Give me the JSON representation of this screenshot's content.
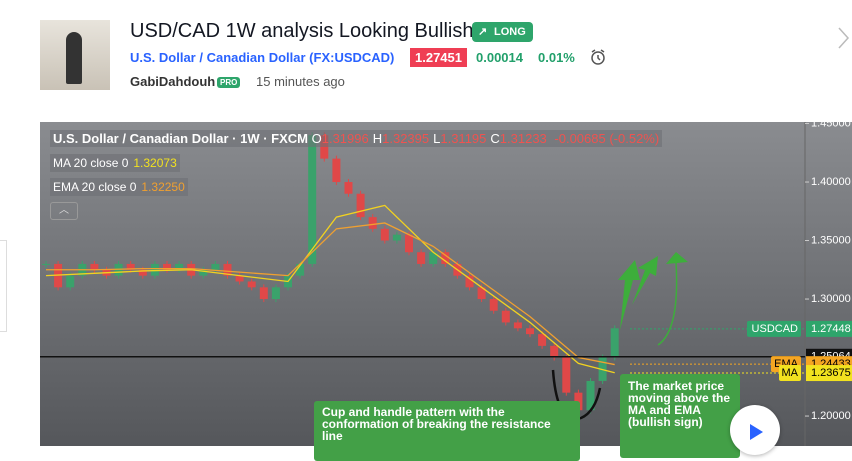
{
  "header": {
    "title": "USD/CAD 1W analysis Looking Bullish",
    "badge": "LONG",
    "symbol_name": "U.S. Dollar / Canadian Dollar",
    "symbol_code": "(FX:USDCAD)",
    "price": "1.27451",
    "change": "0.00014",
    "change_pct": "0.01%",
    "author": "GabiDahdouh",
    "author_badge": "PRO",
    "time": "15 minutes ago"
  },
  "chart_data": {
    "type": "candlestick",
    "title": "U.S. Dollar / Canadian Dollar · 1W · FXCM",
    "ohlc": [
      {
        "key": "O",
        "val": "1.31996"
      },
      {
        "key": "H",
        "val": "1.32395"
      },
      {
        "key": "L",
        "val": "1.31195"
      },
      {
        "key": "C",
        "val": "1.31233"
      }
    ],
    "ohlc_change": "-0.00685 (-0.52%)",
    "indicators": [
      {
        "name": "MA 20 close 0",
        "value": "1.32073",
        "color": "#f2e21f"
      },
      {
        "name": "EMA 20 close 0",
        "value": "1.32250",
        "color": "#f0a030"
      }
    ],
    "close": [
      1.33,
      1.31,
      1.32,
      1.33,
      1.325,
      1.32,
      1.33,
      1.325,
      1.32,
      1.33,
      1.325,
      1.33,
      1.32,
      1.325,
      1.33,
      1.32,
      1.315,
      1.31,
      1.3,
      1.31,
      1.32,
      1.33,
      1.44,
      1.42,
      1.4,
      1.39,
      1.37,
      1.36,
      1.35,
      1.355,
      1.34,
      1.33,
      1.34,
      1.33,
      1.32,
      1.31,
      1.3,
      1.29,
      1.28,
      1.275,
      1.27,
      1.26,
      1.25,
      1.22,
      1.205,
      1.23,
      1.25,
      1.275
    ],
    "up_color": "#3aa26b",
    "down_color": "#e04848",
    "lines": [
      {
        "name": "MA",
        "color": "#f2d21f",
        "x": [
          0,
          4,
          8,
          12,
          16,
          20,
          24,
          28,
          32,
          36,
          40,
          44,
          47
        ],
        "values": [
          1.32,
          1.322,
          1.324,
          1.325,
          1.32,
          1.315,
          1.37,
          1.38,
          1.34,
          1.31,
          1.28,
          1.245,
          1.237
        ]
      },
      {
        "name": "EMA",
        "color": "#f0a030",
        "x": [
          0,
          4,
          8,
          12,
          16,
          20,
          24,
          28,
          32,
          36,
          40,
          44,
          47
        ],
        "values": [
          1.325,
          1.325,
          1.326,
          1.326,
          1.323,
          1.32,
          1.36,
          1.365,
          1.345,
          1.315,
          1.285,
          1.25,
          1.244
        ]
      }
    ],
    "ylim": [
      1.1744,
      1.4513
    ],
    "yticks": [
      {
        "value": 1.45,
        "label": "1.45000"
      },
      {
        "value": 1.4,
        "label": "1.40000"
      },
      {
        "value": 1.35,
        "label": "1.35000"
      },
      {
        "value": 1.3,
        "label": "1.30000"
      },
      {
        "value": 1.2,
        "label": "1.20000"
      }
    ],
    "price_tags": [
      {
        "name": "USDCAD",
        "value": 1.27448,
        "label": "1.27448",
        "color": "#2ea56b"
      },
      {
        "name": "EMA",
        "value": 1.24433,
        "label": "1.24433",
        "color": "#f5a623"
      },
      {
        "name": "MA",
        "value": 1.23675,
        "label": "1.23675",
        "color": "#f2e21f"
      }
    ],
    "resistance": {
      "value": 1.25064,
      "label": "1.25064"
    },
    "annotations": [
      "Cup and handle pattern with the conformation of breaking the resistance line",
      "The market price moving above the MA and EMA (bullish sign)"
    ]
  }
}
